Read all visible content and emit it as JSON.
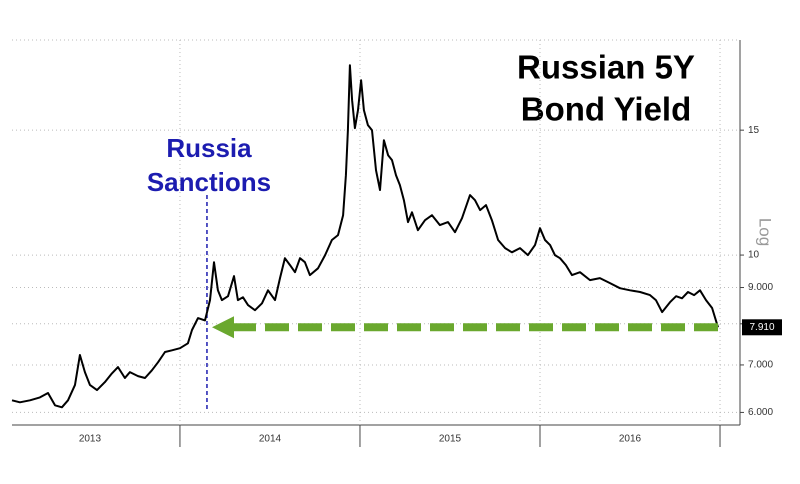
{
  "chart_data": {
    "type": "line",
    "title": [
      "Russian 5Y",
      "Bond Yield"
    ],
    "annotation": {
      "text": [
        "Russia",
        "Sanctions"
      ],
      "x": 2014.15,
      "color": "#1c1cb0"
    },
    "y_axis_label": "Log",
    "x": [
      2013.067,
      2013.111,
      2013.167,
      2013.222,
      2013.267,
      2013.306,
      2013.344,
      2013.378,
      2013.417,
      2013.444,
      2013.472,
      2013.5,
      2013.539,
      2013.583,
      2013.622,
      2013.656,
      2013.694,
      2013.722,
      2013.767,
      2013.806,
      2013.844,
      2013.878,
      2013.917,
      2013.956,
      2014,
      2014.044,
      2014.067,
      2014.1,
      2014.139,
      2014.167,
      2014.189,
      2014.211,
      2014.233,
      2014.267,
      2014.3,
      2014.322,
      2014.35,
      2014.378,
      2014.417,
      2014.456,
      2014.489,
      2014.528,
      2014.556,
      2014.583,
      2014.611,
      2014.639,
      2014.667,
      2014.694,
      2014.722,
      2014.767,
      2014.806,
      2014.844,
      2014.878,
      2014.906,
      2014.922,
      2014.933,
      2014.944,
      2014.956,
      2014.972,
      2014.989,
      2015.006,
      2015.022,
      2015.044,
      2015.067,
      2015.089,
      2015.111,
      2015.133,
      2015.156,
      2015.178,
      2015.2,
      2015.222,
      2015.244,
      2015.267,
      2015.289,
      2015.322,
      2015.361,
      2015.4,
      2015.444,
      2015.489,
      2015.528,
      2015.567,
      2015.611,
      2015.639,
      2015.667,
      2015.7,
      2015.733,
      2015.767,
      2015.806,
      2015.844,
      2015.889,
      2015.933,
      2015.972,
      2016,
      2016.028,
      2016.056,
      2016.083,
      2016.111,
      2016.144,
      2016.178,
      2016.222,
      2016.278,
      2016.333,
      2016.389,
      2016.444,
      2016.5,
      2016.556,
      2016.611,
      2016.644,
      2016.678,
      2016.722,
      2016.756,
      2016.789,
      2016.822,
      2016.856,
      2016.889,
      2016.922,
      2016.956,
      2016.989
    ],
    "values": [
      6.24,
      6.2,
      6.24,
      6.3,
      6.39,
      6.14,
      6.1,
      6.24,
      6.56,
      7.23,
      6.84,
      6.56,
      6.45,
      6.62,
      6.81,
      6.95,
      6.71,
      6.84,
      6.75,
      6.71,
      6.88,
      7.06,
      7.3,
      7.34,
      7.39,
      7.51,
      7.84,
      8.15,
      8.09,
      8.64,
      9.77,
      8.92,
      8.64,
      8.75,
      9.34,
      8.64,
      8.72,
      8.5,
      8.36,
      8.55,
      8.92,
      8.64,
      9.28,
      9.9,
      9.68,
      9.46,
      9.9,
      9.77,
      9.37,
      9.58,
      10,
      10.5,
      10.67,
      11.38,
      12.96,
      15,
      18.52,
      16.53,
      15.1,
      16.01,
      17.64,
      16.01,
      15.25,
      15,
      13.17,
      12.35,
      14.52,
      13.83,
      13.61,
      12.96,
      12.55,
      11.95,
      11.13,
      11.49,
      10.84,
      11.2,
      11.38,
      11.02,
      11.13,
      10.77,
      11.27,
      12.15,
      11.95,
      11.57,
      11.76,
      11.2,
      10.5,
      10.23,
      10.09,
      10.23,
      10,
      10.33,
      10.91,
      10.5,
      10.33,
      10,
      9.9,
      9.68,
      9.37,
      9.46,
      9.22,
      9.28,
      9.13,
      8.98,
      8.92,
      8.87,
      8.78,
      8.64,
      8.31,
      8.58,
      8.75,
      8.69,
      8.87,
      8.78,
      8.92,
      8.64,
      8.42,
      7.91
    ],
    "color": "#000000",
    "last_value": {
      "value": 7.91,
      "label": "7.910",
      "arrow_color": "#6aa82e"
    },
    "xlim": [
      2013.067,
      2017.111
    ],
    "xticks": [
      {
        "value": 2013.5,
        "label": "2013"
      },
      {
        "value": 2014.5,
        "label": "2014"
      },
      {
        "value": 2015.5,
        "label": "2015"
      },
      {
        "value": 2016.5,
        "label": "2016"
      }
    ],
    "x_dividers": [
      2014,
      2015,
      2016,
      2017
    ],
    "ylim": [
      5.76,
      20.1
    ],
    "yticks": [
      {
        "value": 6,
        "label": "6.000"
      },
      {
        "value": 7,
        "label": "7.000"
      },
      8,
      {
        "value": 9,
        "label": "9.000"
      },
      10,
      15
    ],
    "log_scale": true,
    "grid": true
  }
}
